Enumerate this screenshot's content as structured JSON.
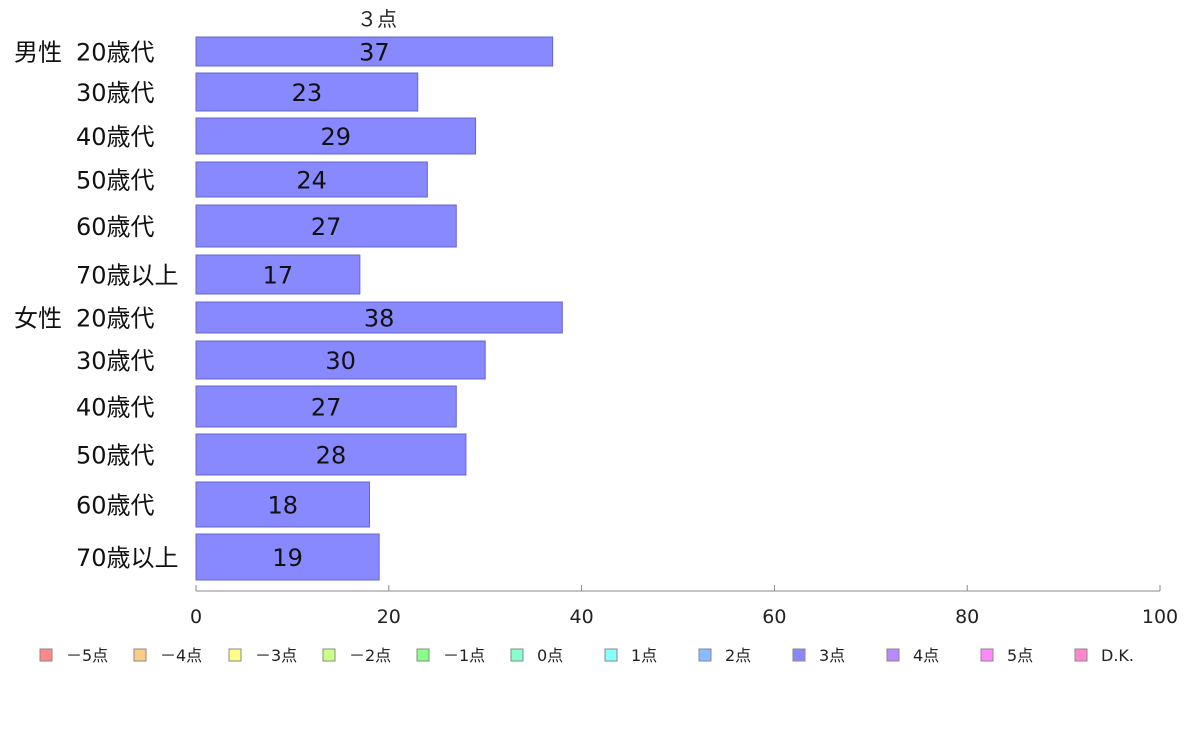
{
  "chart_data": {
    "type": "bar",
    "orientation": "horizontal",
    "column_title": "３点",
    "groups": [
      {
        "name": "男性",
        "categories": [
          "20歳代",
          "30歳代",
          "40歳代",
          "50歳代",
          "60歳代",
          "70歳以上"
        ],
        "values": [
          37,
          23,
          29,
          24,
          27,
          17
        ]
      },
      {
        "name": "女性",
        "categories": [
          "20歳代",
          "30歳代",
          "40歳代",
          "50歳代",
          "60歳代",
          "70歳以上"
        ],
        "values": [
          38,
          30,
          27,
          28,
          18,
          19
        ]
      }
    ],
    "xlim": [
      0,
      100
    ],
    "xticks": [
      0,
      20,
      40,
      60,
      80,
      100
    ],
    "bar_color": "#8888ff",
    "bar_border_color": "#6666cc",
    "grid": false,
    "legend_position": "bottom",
    "legend": [
      {
        "label": "－5点",
        "color": "#ff8888"
      },
      {
        "label": "－4点",
        "color": "#ffcc88"
      },
      {
        "label": "－3点",
        "color": "#ffff88"
      },
      {
        "label": "－2点",
        "color": "#ccff88"
      },
      {
        "label": "－1点",
        "color": "#88ff88"
      },
      {
        "label": "0点",
        "color": "#88ffcc"
      },
      {
        "label": "1点",
        "color": "#88ffff"
      },
      {
        "label": "2点",
        "color": "#88bbff"
      },
      {
        "label": "3点",
        "color": "#8888ff"
      },
      {
        "label": "4点",
        "color": "#bb88ff"
      },
      {
        "label": "5点",
        "color": "#ff88ff"
      },
      {
        "label": "D.K.",
        "color": "#ff88cc"
      }
    ]
  }
}
